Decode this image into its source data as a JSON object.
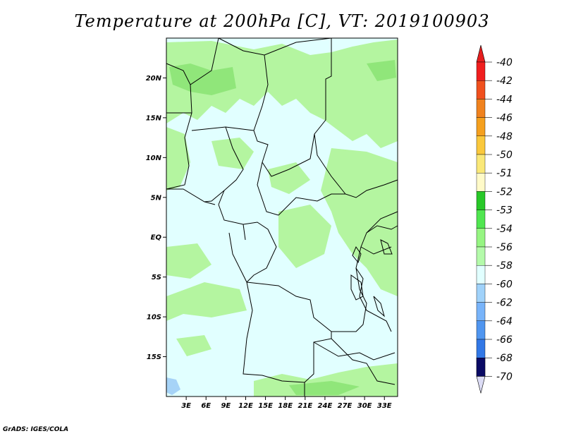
{
  "title": "Temperature at 200hPa [C], VT: 2019100903",
  "credit": "GrADS: IGES/COLA",
  "colors": {
    "background_field": "#e1ffff",
    "green_light": "#b4f5a0",
    "green_mid": "#90e67a",
    "blue_light": "#a6d3f7",
    "border": "#000000"
  },
  "map": {
    "lon_range": [
      0,
      35
    ],
    "lat_range": [
      -20,
      25
    ],
    "lat_ticks": [
      {
        "value": 20,
        "label": "20N"
      },
      {
        "value": 15,
        "label": "15N"
      },
      {
        "value": 10,
        "label": "10N"
      },
      {
        "value": 5,
        "label": "5N"
      },
      {
        "value": 0,
        "label": "EQ"
      },
      {
        "value": -5,
        "label": "5S"
      },
      {
        "value": -10,
        "label": "10S"
      },
      {
        "value": -15,
        "label": "15S"
      }
    ],
    "lon_ticks": [
      {
        "value": 3,
        "label": "3E"
      },
      {
        "value": 6,
        "label": "6E"
      },
      {
        "value": 9,
        "label": "9E"
      },
      {
        "value": 12,
        "label": "12E"
      },
      {
        "value": 15,
        "label": "15E"
      },
      {
        "value": 18,
        "label": "18E"
      },
      {
        "value": 21,
        "label": "21E"
      },
      {
        "value": 24,
        "label": "24E"
      },
      {
        "value": 27,
        "label": "27E"
      },
      {
        "value": 30,
        "label": "30E"
      },
      {
        "value": 33,
        "label": "33E"
      }
    ]
  },
  "colorbar": {
    "levels": [
      {
        "label": "-40",
        "color": "#f01e1e"
      },
      {
        "label": "-42",
        "color": "#f0501e"
      },
      {
        "label": "-44",
        "color": "#f0821e"
      },
      {
        "label": "-46",
        "color": "#f5a01e"
      },
      {
        "label": "-48",
        "color": "#fac83c"
      },
      {
        "label": "-50",
        "color": "#fae878"
      },
      {
        "label": "-51",
        "color": "#fffac8"
      },
      {
        "label": "-52",
        "color": "#28c828"
      },
      {
        "label": "-53",
        "color": "#50e650"
      },
      {
        "label": "-54",
        "color": "#96f582"
      },
      {
        "label": "-56",
        "color": "#b4faaa"
      },
      {
        "label": "-58",
        "color": "#e1ffff"
      },
      {
        "label": "-60",
        "color": "#a0d2fa"
      },
      {
        "label": "-62",
        "color": "#78b4fa"
      },
      {
        "label": "-64",
        "color": "#5096f0"
      },
      {
        "label": "-66",
        "color": "#3278e6"
      },
      {
        "label": "-68",
        "color": "#1e5ad2"
      },
      {
        "label": "-70",
        "color": "#143cb4"
      }
    ],
    "top_arrow_color": "#e61e1e",
    "bottom_arrow_color": "#0a0a64",
    "bottom_tail_color": "#dcdcf5"
  }
}
